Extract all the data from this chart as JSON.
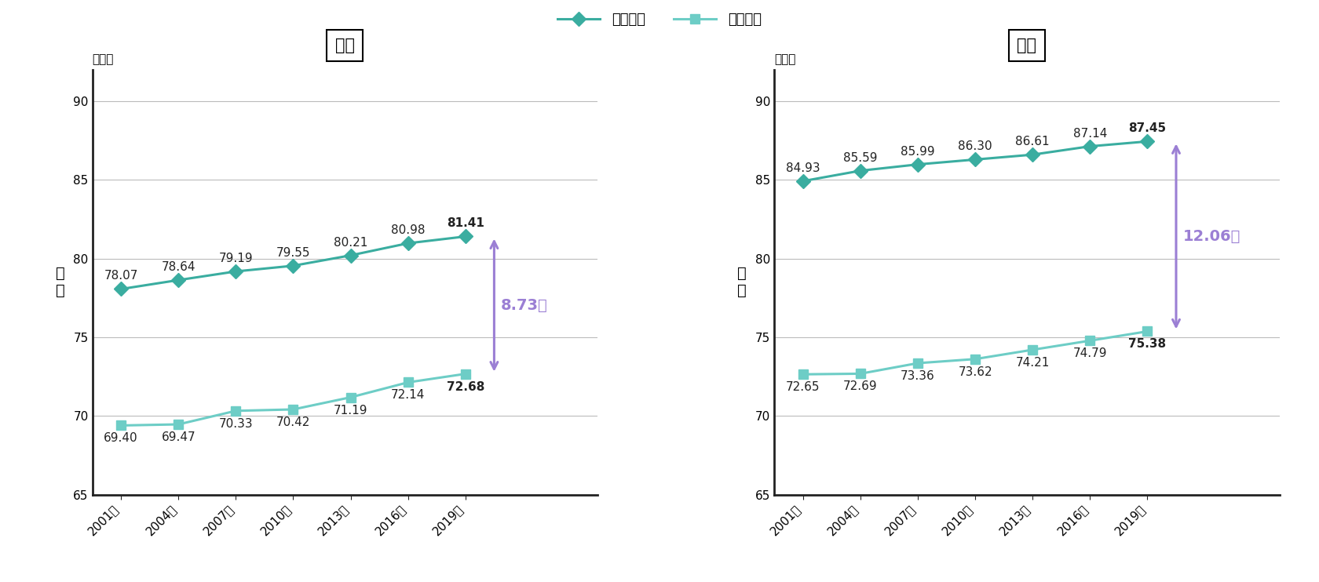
{
  "years": [
    "2001年",
    "2004年",
    "2007年",
    "2010年",
    "2013年",
    "2016年",
    "2019年"
  ],
  "male_avg": [
    78.07,
    78.64,
    79.19,
    79.55,
    80.21,
    80.98,
    81.41
  ],
  "male_health": [
    69.4,
    69.47,
    70.33,
    70.42,
    71.19,
    72.14,
    72.68
  ],
  "female_avg": [
    84.93,
    85.59,
    85.99,
    86.3,
    86.61,
    87.14,
    87.45
  ],
  "female_health": [
    72.65,
    72.69,
    73.36,
    73.62,
    74.21,
    74.79,
    75.38
  ],
  "male_diff": "8.73年",
  "female_diff": "12.06年",
  "avg_color": "#3aada0",
  "health_color": "#6dcdc6",
  "arrow_color": "#9b7fd4",
  "ylim": [
    65,
    92
  ],
  "yticks": [
    65,
    70,
    75,
    80,
    85,
    90
  ],
  "title_male": "男性",
  "title_female": "女性",
  "ylabel": "年\n齢",
  "yunit": "（歳）",
  "legend_avg": "平均对命",
  "legend_health": "健康对命",
  "grid_color": "#bbbbbb",
  "bg_color": "#ffffff",
  "label_fontsize": 11,
  "title_fontsize": 15,
  "tick_fontsize": 11,
  "diff_fontsize": 14,
  "ylabel_fontsize": 14,
  "legend_fontsize": 13
}
